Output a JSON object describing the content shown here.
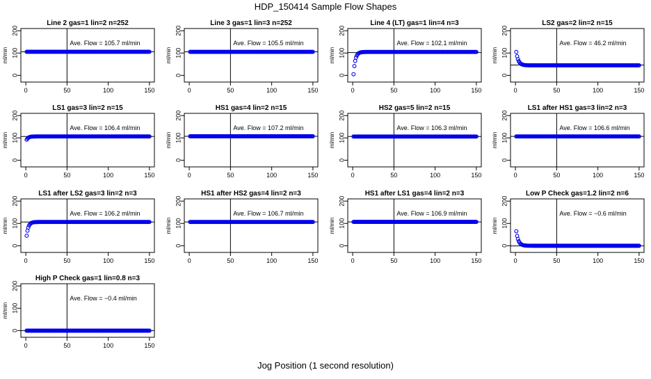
{
  "figure": {
    "title": "HDP_150414  Sample Flow Shapes",
    "xlabel": "Jog Position (1 second resolution)"
  },
  "chart_data": [
    {
      "type": "scatter",
      "title": "Line 2 gas=1 lin=2 n=252",
      "ylabel": "ml/min",
      "annotation": "Ave. Flow =  105.7  ml/min",
      "xlim": [
        0,
        150
      ],
      "ylim": [
        -30,
        210
      ],
      "xticks": [
        0,
        50,
        100,
        150
      ],
      "yticks": [
        0,
        100,
        200
      ],
      "vline": 50,
      "hline": 105.7,
      "shape": "flat",
      "level": 105.7,
      "start": 105.7
    },
    {
      "type": "scatter",
      "title": "Line 3 gas=1 lin=3 n=252",
      "ylabel": "ml/min",
      "annotation": "Ave. Flow =  105.5  ml/min",
      "xlim": [
        0,
        150
      ],
      "ylim": [
        -30,
        210
      ],
      "xticks": [
        0,
        50,
        100,
        150
      ],
      "yticks": [
        0,
        100,
        200
      ],
      "vline": 50,
      "hline": 105.5,
      "shape": "flat",
      "level": 105.5,
      "start": 105.5
    },
    {
      "type": "scatter",
      "title": "Line 4 (LT) gas=1 lin=4 n=3",
      "ylabel": "ml/min",
      "annotation": "Ave. Flow =  102.1  ml/min",
      "xlim": [
        0,
        150
      ],
      "ylim": [
        -30,
        210
      ],
      "xticks": [
        0,
        50,
        100,
        150
      ],
      "yticks": [
        0,
        100,
        200
      ],
      "vline": 50,
      "hline": 102.1,
      "shape": "rise",
      "level": 105,
      "start": 5
    },
    {
      "type": "scatter",
      "title": "LS2 gas=2 lin=2 n=15",
      "ylabel": "ml/min",
      "annotation": "Ave. Flow =  46.2  ml/min",
      "xlim": [
        0,
        150
      ],
      "ylim": [
        -30,
        210
      ],
      "xticks": [
        0,
        50,
        100,
        150
      ],
      "yticks": [
        0,
        100,
        200
      ],
      "vline": 50,
      "hline": 46.2,
      "shape": "decay",
      "level": 45,
      "start": 105
    },
    {
      "type": "scatter",
      "title": "LS1 gas=3 lin=2 n=15",
      "ylabel": "ml/min",
      "annotation": "Ave. Flow =  106.4  ml/min",
      "xlim": [
        0,
        150
      ],
      "ylim": [
        -30,
        210
      ],
      "xticks": [
        0,
        50,
        100,
        150
      ],
      "yticks": [
        0,
        100,
        200
      ],
      "vline": 50,
      "hline": 106.4,
      "shape": "rise",
      "level": 106.5,
      "start": 92
    },
    {
      "type": "scatter",
      "title": "HS1 gas=4 lin=2 n=15",
      "ylabel": "ml/min",
      "annotation": "Ave. Flow =  107.2  ml/min",
      "xlim": [
        0,
        150
      ],
      "ylim": [
        -30,
        210
      ],
      "xticks": [
        0,
        50,
        100,
        150
      ],
      "yticks": [
        0,
        100,
        200
      ],
      "vline": 50,
      "hline": 107.2,
      "shape": "flat",
      "level": 107.2,
      "start": 107.2
    },
    {
      "type": "scatter",
      "title": "HS2 gas=5 lin=2 n=15",
      "ylabel": "ml/min",
      "annotation": "Ave. Flow =  106.3  ml/min",
      "xlim": [
        0,
        150
      ],
      "ylim": [
        -30,
        210
      ],
      "xticks": [
        0,
        50,
        100,
        150
      ],
      "yticks": [
        0,
        100,
        200
      ],
      "vline": 50,
      "hline": 106.3,
      "shape": "flat",
      "level": 106.3,
      "start": 106.3
    },
    {
      "type": "scatter",
      "title": "LS1 after HS1 gas=3 lin=2 n=3",
      "ylabel": "ml/min",
      "annotation": "Ave. Flow =  106.6  ml/min",
      "xlim": [
        0,
        150
      ],
      "ylim": [
        -30,
        210
      ],
      "xticks": [
        0,
        50,
        100,
        150
      ],
      "yticks": [
        0,
        100,
        200
      ],
      "vline": 50,
      "hline": 106.6,
      "shape": "flat",
      "level": 106.6,
      "start": 106.6
    },
    {
      "type": "scatter",
      "title": "LS1 after LS2 gas=3 lin=2 n=3",
      "ylabel": "ml/min",
      "annotation": "Ave. Flow =  106.2  ml/min",
      "xlim": [
        0,
        150
      ],
      "ylim": [
        -30,
        210
      ],
      "xticks": [
        0,
        50,
        100,
        150
      ],
      "yticks": [
        0,
        100,
        200
      ],
      "vline": 50,
      "hline": 106.2,
      "shape": "rise",
      "level": 106.5,
      "start": 45
    },
    {
      "type": "scatter",
      "title": "HS1 after HS2 gas=4 lin=2 n=3",
      "ylabel": "ml/min",
      "annotation": "Ave. Flow =  106.7  ml/min",
      "xlim": [
        0,
        150
      ],
      "ylim": [
        -30,
        210
      ],
      "xticks": [
        0,
        50,
        100,
        150
      ],
      "yticks": [
        0,
        100,
        200
      ],
      "vline": 50,
      "hline": 106.7,
      "shape": "flat",
      "level": 106.7,
      "start": 106.7
    },
    {
      "type": "scatter",
      "title": "HS1 after LS1 gas=4 lin=2 n=3",
      "ylabel": "ml/min",
      "annotation": "Ave. Flow =  106.9  ml/min",
      "xlim": [
        0,
        150
      ],
      "ylim": [
        -30,
        210
      ],
      "xticks": [
        0,
        50,
        100,
        150
      ],
      "yticks": [
        0,
        100,
        200
      ],
      "vline": 50,
      "hline": 106.9,
      "shape": "flat",
      "level": 106.9,
      "start": 106.9
    },
    {
      "type": "scatter",
      "title": "Low P Check gas=1.2 lin=2 n=6",
      "ylabel": "ml/min",
      "annotation": "Ave. Flow =  −0.6  ml/min",
      "xlim": [
        0,
        150
      ],
      "ylim": [
        -30,
        210
      ],
      "xticks": [
        0,
        50,
        100,
        150
      ],
      "yticks": [
        0,
        100,
        200
      ],
      "vline": 50,
      "hline": -0.6,
      "shape": "decay",
      "level": 0,
      "start": 65
    },
    {
      "type": "scatter",
      "title": "High P Check gas=1 lin=0.8 n=3",
      "ylabel": "ml/min",
      "annotation": "Ave. Flow =  −0.4  ml/min",
      "xlim": [
        0,
        150
      ],
      "ylim": [
        -30,
        210
      ],
      "xticks": [
        0,
        50,
        100,
        150
      ],
      "yticks": [
        0,
        100,
        200
      ],
      "vline": 50,
      "hline": -0.4,
      "shape": "flat",
      "level": -0.4,
      "start": -0.4
    }
  ],
  "colors": {
    "points": "#0000ee",
    "axes": "#000000",
    "background": "#ffffff"
  }
}
